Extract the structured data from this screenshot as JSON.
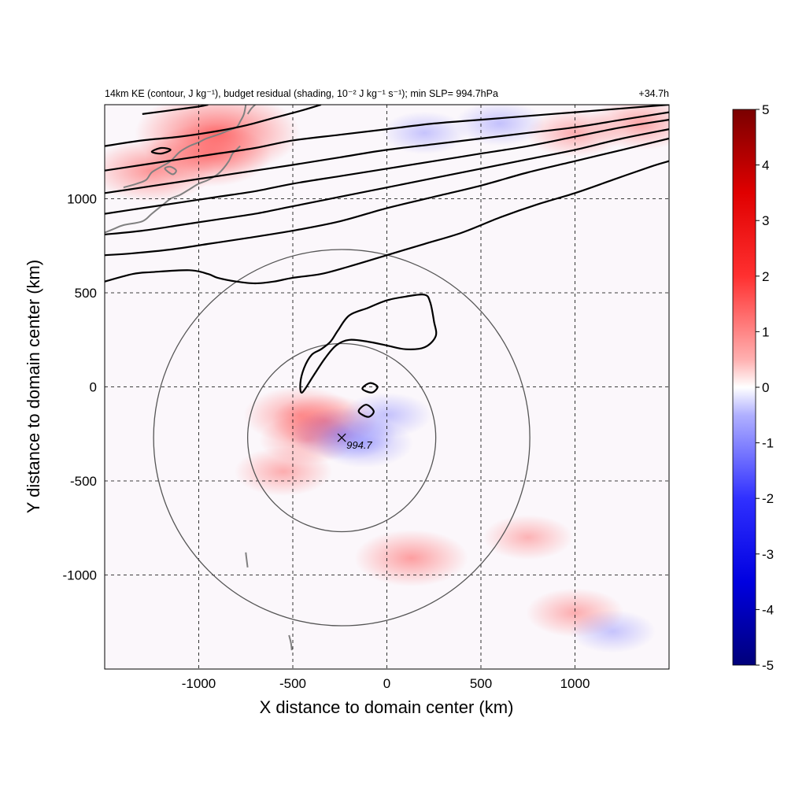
{
  "chart_data": {
    "type": "heatmap",
    "title": "14km KE (contour, J kg⁻¹), budget residual (shading, 10⁻² J kg⁻¹ s⁻¹); min SLP= 994.7hPa",
    "time_label": "+34.7h",
    "xlabel": "X distance to domain center (km)",
    "ylabel": "Y distance to domain center (km)",
    "xlim": [
      -1500,
      1500
    ],
    "ylim": [
      -1500,
      1500
    ],
    "xticks": [
      -1000,
      -500,
      0,
      500,
      1000
    ],
    "yticks": [
      -1000,
      -500,
      0,
      500,
      1000
    ],
    "grid": true,
    "colorbar": {
      "range": [
        -5,
        5
      ],
      "ticks": [
        5,
        4,
        3,
        2,
        1,
        0,
        -1,
        -2,
        -3,
        -4,
        -5
      ],
      "colormap": "blue-white-red",
      "colors": [
        "#00007a",
        "#0000ff",
        "#ffffff",
        "#ff0000",
        "#7a0000"
      ]
    },
    "storm_center": {
      "x": -240,
      "y": -270,
      "label": "994.7"
    },
    "range_circles_km": [
      500,
      1000
    ],
    "ke_contours": [
      [
        [
          -1500,
          560
        ],
        [
          -1350,
          600
        ],
        [
          -1250,
          610
        ],
        [
          -1050,
          620
        ],
        [
          -950,
          600
        ],
        [
          -900,
          580
        ],
        [
          -800,
          560
        ],
        [
          -700,
          550
        ],
        [
          -600,
          560
        ],
        [
          -500,
          580
        ],
        [
          -350,
          600
        ],
        [
          -200,
          640
        ],
        [
          0,
          700
        ],
        [
          200,
          760
        ],
        [
          400,
          820
        ],
        [
          600,
          900
        ],
        [
          800,
          970
        ],
        [
          1000,
          1030
        ],
        [
          1200,
          1100
        ],
        [
          1400,
          1170
        ],
        [
          1500,
          1200
        ]
      ],
      [
        [
          -1500,
          700
        ],
        [
          -1350,
          710
        ],
        [
          -1150,
          730
        ],
        [
          -950,
          760
        ],
        [
          -750,
          790
        ],
        [
          -500,
          830
        ],
        [
          -250,
          880
        ],
        [
          0,
          950
        ],
        [
          250,
          1010
        ],
        [
          500,
          1070
        ],
        [
          750,
          1140
        ],
        [
          1000,
          1200
        ],
        [
          1250,
          1260
        ],
        [
          1500,
          1320
        ]
      ],
      [
        [
          -1500,
          810
        ],
        [
          -1300,
          830
        ],
        [
          -1100,
          860
        ],
        [
          -900,
          890
        ],
        [
          -700,
          920
        ],
        [
          -500,
          960
        ],
        [
          -250,
          1010
        ],
        [
          0,
          1060
        ],
        [
          250,
          1110
        ],
        [
          500,
          1160
        ],
        [
          750,
          1210
        ],
        [
          1000,
          1260
        ],
        [
          1250,
          1320
        ],
        [
          1500,
          1370
        ]
      ],
      [
        [
          -1500,
          920
        ],
        [
          -1300,
          950
        ],
        [
          -1100,
          980
        ],
        [
          -900,
          1010
        ],
        [
          -700,
          1040
        ],
        [
          -500,
          1080
        ],
        [
          -250,
          1120
        ],
        [
          0,
          1160
        ],
        [
          250,
          1200
        ],
        [
          500,
          1240
        ],
        [
          750,
          1280
        ],
        [
          1000,
          1330
        ],
        [
          1250,
          1380
        ],
        [
          1500,
          1420
        ]
      ],
      [
        [
          -1500,
          1030
        ],
        [
          -1300,
          1060
        ],
        [
          -1100,
          1090
        ],
        [
          -900,
          1120
        ],
        [
          -700,
          1150
        ],
        [
          -500,
          1180
        ],
        [
          -250,
          1220
        ],
        [
          0,
          1260
        ],
        [
          250,
          1290
        ],
        [
          500,
          1320
        ],
        [
          750,
          1350
        ],
        [
          1000,
          1380
        ],
        [
          1250,
          1420
        ],
        [
          1500,
          1460
        ]
      ],
      [
        [
          -1500,
          1150
        ],
        [
          -1300,
          1180
        ],
        [
          -1100,
          1210
        ],
        [
          -900,
          1240
        ],
        [
          -700,
          1270
        ],
        [
          -500,
          1310
        ],
        [
          -250,
          1340
        ],
        [
          0,
          1370
        ],
        [
          250,
          1400
        ],
        [
          500,
          1420
        ],
        [
          750,
          1440
        ],
        [
          1000,
          1460
        ],
        [
          1250,
          1480
        ],
        [
          1500,
          1500
        ]
      ],
      [
        [
          -1500,
          1280
        ],
        [
          -1300,
          1310
        ],
        [
          -1100,
          1330
        ],
        [
          -900,
          1360
        ],
        [
          -750,
          1390
        ],
        [
          -600,
          1430
        ],
        [
          -450,
          1470
        ],
        [
          -350,
          1500
        ]
      ],
      [
        [
          -1300,
          1450
        ],
        [
          -1150,
          1470
        ],
        [
          -1000,
          1490
        ],
        [
          -950,
          1500
        ]
      ],
      [
        [
          -1250,
          1250
        ],
        [
          -1200,
          1270
        ],
        [
          -1150,
          1260
        ],
        [
          -1200,
          1240
        ],
        [
          -1250,
          1250
        ]
      ],
      [
        [
          -450,
          -30
        ],
        [
          -390,
          60
        ],
        [
          -330,
          150
        ],
        [
          -270,
          220
        ],
        [
          -200,
          250
        ],
        [
          -100,
          240
        ],
        [
          0,
          220
        ],
        [
          100,
          200
        ],
        [
          200,
          210
        ],
        [
          260,
          270
        ],
        [
          250,
          350
        ],
        [
          230,
          450
        ],
        [
          200,
          490
        ],
        [
          100,
          480
        ],
        [
          0,
          460
        ],
        [
          -100,
          420
        ],
        [
          -200,
          380
        ],
        [
          -260,
          300
        ],
        [
          -300,
          240
        ],
        [
          -350,
          200
        ],
        [
          -400,
          170
        ],
        [
          -440,
          100
        ],
        [
          -460,
          20
        ],
        [
          -450,
          -30
        ]
      ],
      [
        [
          -130,
          -10
        ],
        [
          -80,
          -30
        ],
        [
          -50,
          0
        ],
        [
          -90,
          20
        ],
        [
          -130,
          -10
        ]
      ],
      [
        [
          -150,
          -130
        ],
        [
          -100,
          -160
        ],
        [
          -70,
          -130
        ],
        [
          -110,
          -95
        ],
        [
          -150,
          -130
        ]
      ]
    ],
    "shading_features": [
      {
        "x": -900,
        "y": 1350,
        "value": 2.5
      },
      {
        "x": -1250,
        "y": 1150,
        "value": 1.5
      },
      {
        "x": -950,
        "y": 1230,
        "value": 1.5
      },
      {
        "x": -460,
        "y": -150,
        "value": 1.2
      },
      {
        "x": -330,
        "y": -180,
        "value": 1.0
      },
      {
        "x": -420,
        "y": -280,
        "value": 0.8
      },
      {
        "x": -230,
        "y": -250,
        "value": -1.0
      },
      {
        "x": -120,
        "y": -300,
        "value": -0.8
      },
      {
        "x": 0,
        "y": -150,
        "value": -0.6
      },
      {
        "x": -550,
        "y": -450,
        "value": 0.8
      },
      {
        "x": 130,
        "y": -910,
        "value": 1.2
      },
      {
        "x": 750,
        "y": -800,
        "value": 0.6
      },
      {
        "x": 1000,
        "y": -1200,
        "value": 0.8
      },
      {
        "x": 1350,
        "y": 1400,
        "value": 1.0
      },
      {
        "x": 1000,
        "y": 1350,
        "value": 0.8
      },
      {
        "x": 600,
        "y": 1400,
        "value": -0.6
      },
      {
        "x": 200,
        "y": 1350,
        "value": -0.5
      },
      {
        "x": 1200,
        "y": -1300,
        "value": -0.5
      }
    ],
    "coastlines": [
      [
        [
          -1400,
          1060
        ],
        [
          -1330,
          1080
        ],
        [
          -1280,
          1100
        ],
        [
          -1250,
          1140
        ],
        [
          -1200,
          1170
        ],
        [
          -1150,
          1200
        ],
        [
          -1100,
          1250
        ],
        [
          -1050,
          1280
        ],
        [
          -1000,
          1300
        ],
        [
          -960,
          1320
        ],
        [
          -900,
          1340
        ],
        [
          -850,
          1360
        ],
        [
          -800,
          1380
        ],
        [
          -780,
          1410
        ],
        [
          -760,
          1450
        ],
        [
          -750,
          1500
        ]
      ],
      [
        [
          -1500,
          820
        ],
        [
          -1450,
          840
        ],
        [
          -1400,
          860
        ],
        [
          -1300,
          880
        ],
        [
          -1250,
          920
        ],
        [
          -1200,
          960
        ],
        [
          -1150,
          1000
        ],
        [
          -1100,
          1020
        ],
        [
          -1050,
          1050
        ],
        [
          -1000,
          1080
        ],
        [
          -950,
          1100
        ],
        [
          -900,
          1130
        ],
        [
          -870,
          1160
        ],
        [
          -840,
          1200
        ],
        [
          -820,
          1240
        ],
        [
          -800,
          1260
        ],
        [
          -780,
          1280
        ]
      ],
      [
        [
          -1180,
          1160
        ],
        [
          -1150,
          1170
        ],
        [
          -1120,
          1150
        ],
        [
          -1140,
          1130
        ],
        [
          -1180,
          1160
        ]
      ],
      [
        [
          -740,
          1450
        ],
        [
          -720,
          1480
        ],
        [
          -700,
          1500
        ]
      ],
      [
        [
          -750,
          -880
        ],
        [
          -745,
          -920
        ],
        [
          -740,
          -960
        ]
      ],
      [
        [
          -520,
          -1320
        ],
        [
          -510,
          -1360
        ],
        [
          -505,
          -1400
        ]
      ]
    ]
  }
}
